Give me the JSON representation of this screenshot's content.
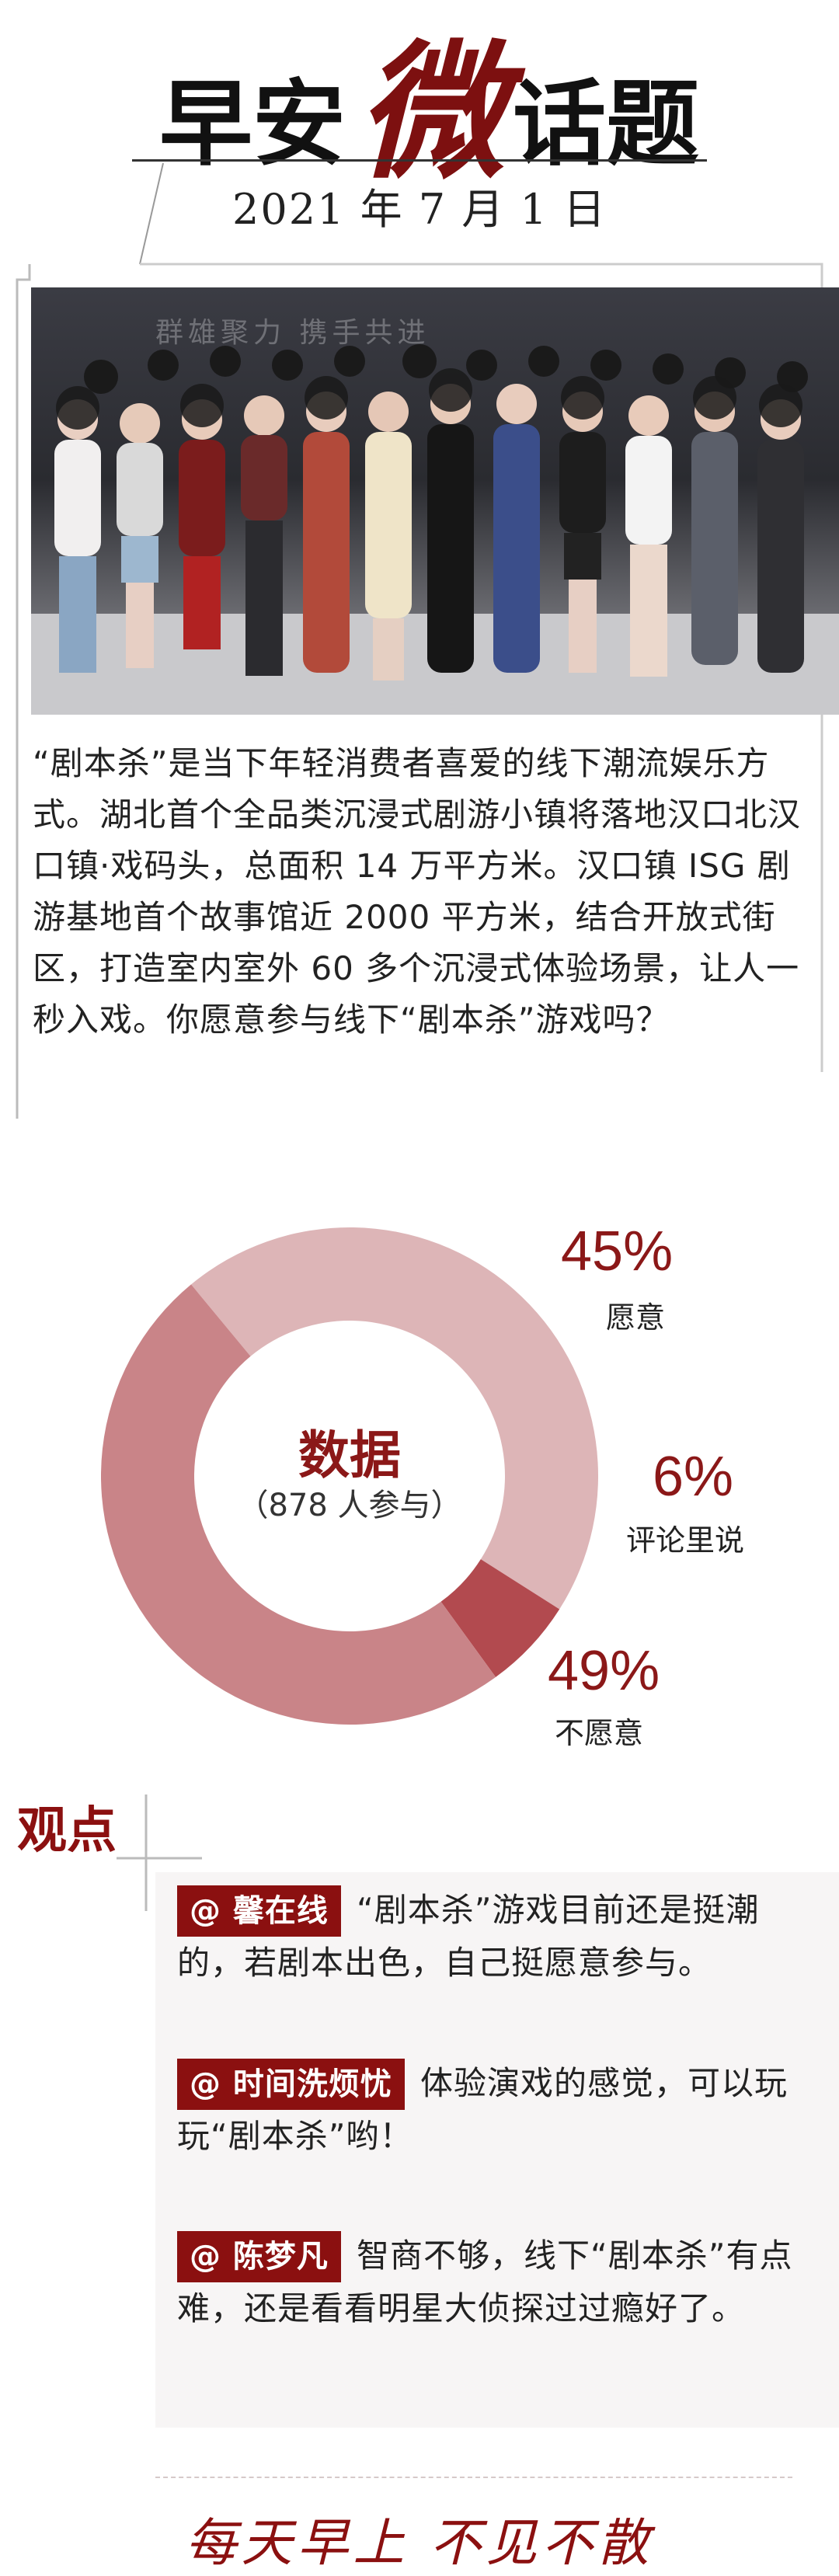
{
  "header": {
    "title_part1": "早安",
    "title_accent": "微",
    "title_part2": "话题",
    "date": "2021 年 7 月 1 日"
  },
  "intro": {
    "text": "“剧本杀”是当下年轻消费者喜爱的线下潮流娱乐方式。湖北首个全品类沉浸式剧游小镇将落地汉口北汉口镇·戏码头，总面积 14 万平方米。汉口镇 ISG 剧游基地首个故事馆近 2000 平方米，结合开放式街区，打造室内室外 60 多个沉浸式体验场景，让人一秒入戏。你愿意参与线下“剧本杀”游戏吗？"
  },
  "photo": {
    "banner_text": "群雄聚力 携手共进"
  },
  "chart_data": {
    "type": "pie",
    "title": "数据",
    "subtitle": "（878 人参与）",
    "slices": [
      {
        "label": "愿意",
        "value": 45,
        "display": "45%",
        "color": "#ddb5b7"
      },
      {
        "label": "评论里说",
        "value": 6,
        "display": "6%",
        "color": "#b24a4f"
      },
      {
        "label": "不愿意",
        "value": 49,
        "display": "49%",
        "color": "#c98488"
      }
    ]
  },
  "views": {
    "title": "观点",
    "comments": [
      {
        "handle": "@ 馨在线",
        "text": "“剧本杀”游戏目前还是挺潮的，若剧本出色，自己挺愿意参与。"
      },
      {
        "handle": "@ 时间洗烦忧",
        "text": "体验演戏的感觉，可以玩玩“剧本杀”哟！"
      },
      {
        "handle": "@ 陈梦凡",
        "text": "智商不够，线下“剧本杀”有点难，还是看看明星大侦探过过瘾好了。"
      }
    ]
  },
  "footer": {
    "slogan": "每天早上  不见不散"
  }
}
